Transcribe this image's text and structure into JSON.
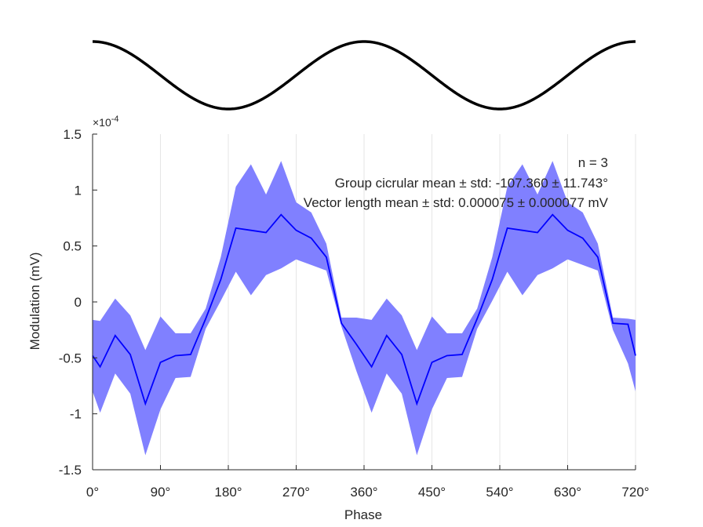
{
  "chart_data": [
    {
      "type": "line",
      "panel": "reference-cosine",
      "x": [
        0,
        45,
        90,
        135,
        180,
        225,
        270,
        315,
        360,
        405,
        450,
        495,
        540,
        585,
        630,
        675,
        720
      ],
      "values": [
        1,
        0.7071,
        0,
        -0.7071,
        -1,
        -0.7071,
        0,
        0.7071,
        1,
        0.7071,
        0,
        -0.7071,
        -1,
        -0.7071,
        0,
        0.7071,
        1
      ],
      "color": "#000000"
    },
    {
      "type": "area",
      "title": "",
      "xlabel": "Phase",
      "ylabel": "Modulation (mV)",
      "y_exponent_label": "×10",
      "y_exponent_power": "-4",
      "xlim": [
        0,
        720
      ],
      "ylim": [
        -1.5,
        1.5
      ],
      "x_ticks": [
        0,
        90,
        180,
        270,
        360,
        450,
        540,
        630,
        720
      ],
      "x_tick_labels": [
        "0°",
        "90°",
        "180°",
        "270°",
        "360°",
        "450°",
        "540°",
        "630°",
        "720°"
      ],
      "y_ticks": [
        -1.5,
        -1,
        -0.5,
        0,
        0.5,
        1,
        1.5
      ],
      "y_tick_labels": [
        "-1.5",
        "-1",
        "-0.5",
        "0",
        "0.5",
        "1",
        "1.5"
      ],
      "grid": "vertical",
      "x": [
        0,
        10,
        30,
        50,
        70,
        90,
        110,
        130,
        150,
        170,
        190,
        210,
        230,
        250,
        270,
        290,
        310,
        330,
        350,
        370,
        390,
        410,
        430,
        450,
        470,
        490,
        510,
        530,
        550,
        570,
        590,
        610,
        630,
        650,
        670,
        690,
        710,
        720
      ],
      "series": [
        {
          "role": "mean",
          "values": [
            -0.48,
            -0.58,
            -0.3,
            -0.47,
            -0.91,
            -0.54,
            -0.48,
            -0.47,
            -0.15,
            0.2,
            0.66,
            0.64,
            0.62,
            0.78,
            0.64,
            0.57,
            0.4,
            -0.19,
            -0.38,
            -0.58,
            -0.3,
            -0.47,
            -0.91,
            -0.54,
            -0.48,
            -0.47,
            -0.15,
            0.2,
            0.66,
            0.64,
            0.62,
            0.78,
            0.64,
            0.57,
            0.4,
            -0.19,
            -0.2,
            -0.48
          ],
          "color": "#0000ff"
        },
        {
          "role": "upper",
          "values": [
            -0.16,
            -0.17,
            0.03,
            -0.12,
            -0.43,
            -0.13,
            -0.28,
            -0.28,
            -0.06,
            0.4,
            1.03,
            1.23,
            0.96,
            1.26,
            0.89,
            0.8,
            0.52,
            -0.14,
            -0.14,
            -0.16,
            0.03,
            -0.12,
            -0.43,
            -0.13,
            -0.28,
            -0.28,
            -0.06,
            0.4,
            1.03,
            1.23,
            0.96,
            1.26,
            0.89,
            0.8,
            0.52,
            -0.14,
            -0.15,
            -0.16
          ],
          "color": "#8080ff"
        },
        {
          "role": "lower",
          "values": [
            -0.8,
            -0.99,
            -0.64,
            -0.82,
            -1.37,
            -0.96,
            -0.68,
            -0.67,
            -0.24,
            0.01,
            0.27,
            0.06,
            0.24,
            0.3,
            0.38,
            0.33,
            0.28,
            -0.22,
            -0.62,
            -0.99,
            -0.64,
            -0.82,
            -1.37,
            -0.96,
            -0.68,
            -0.67,
            -0.24,
            0.01,
            0.27,
            0.06,
            0.24,
            0.3,
            0.38,
            0.33,
            0.28,
            -0.25,
            -0.55,
            -0.8
          ],
          "color": "#8080ff"
        }
      ],
      "annotations": [
        "n = 3",
        "Group cicrular mean ± std: -107.360 ± 11.743°",
        "Vector length mean ± std: 0.000075 ± 0.000077 mV"
      ]
    }
  ]
}
